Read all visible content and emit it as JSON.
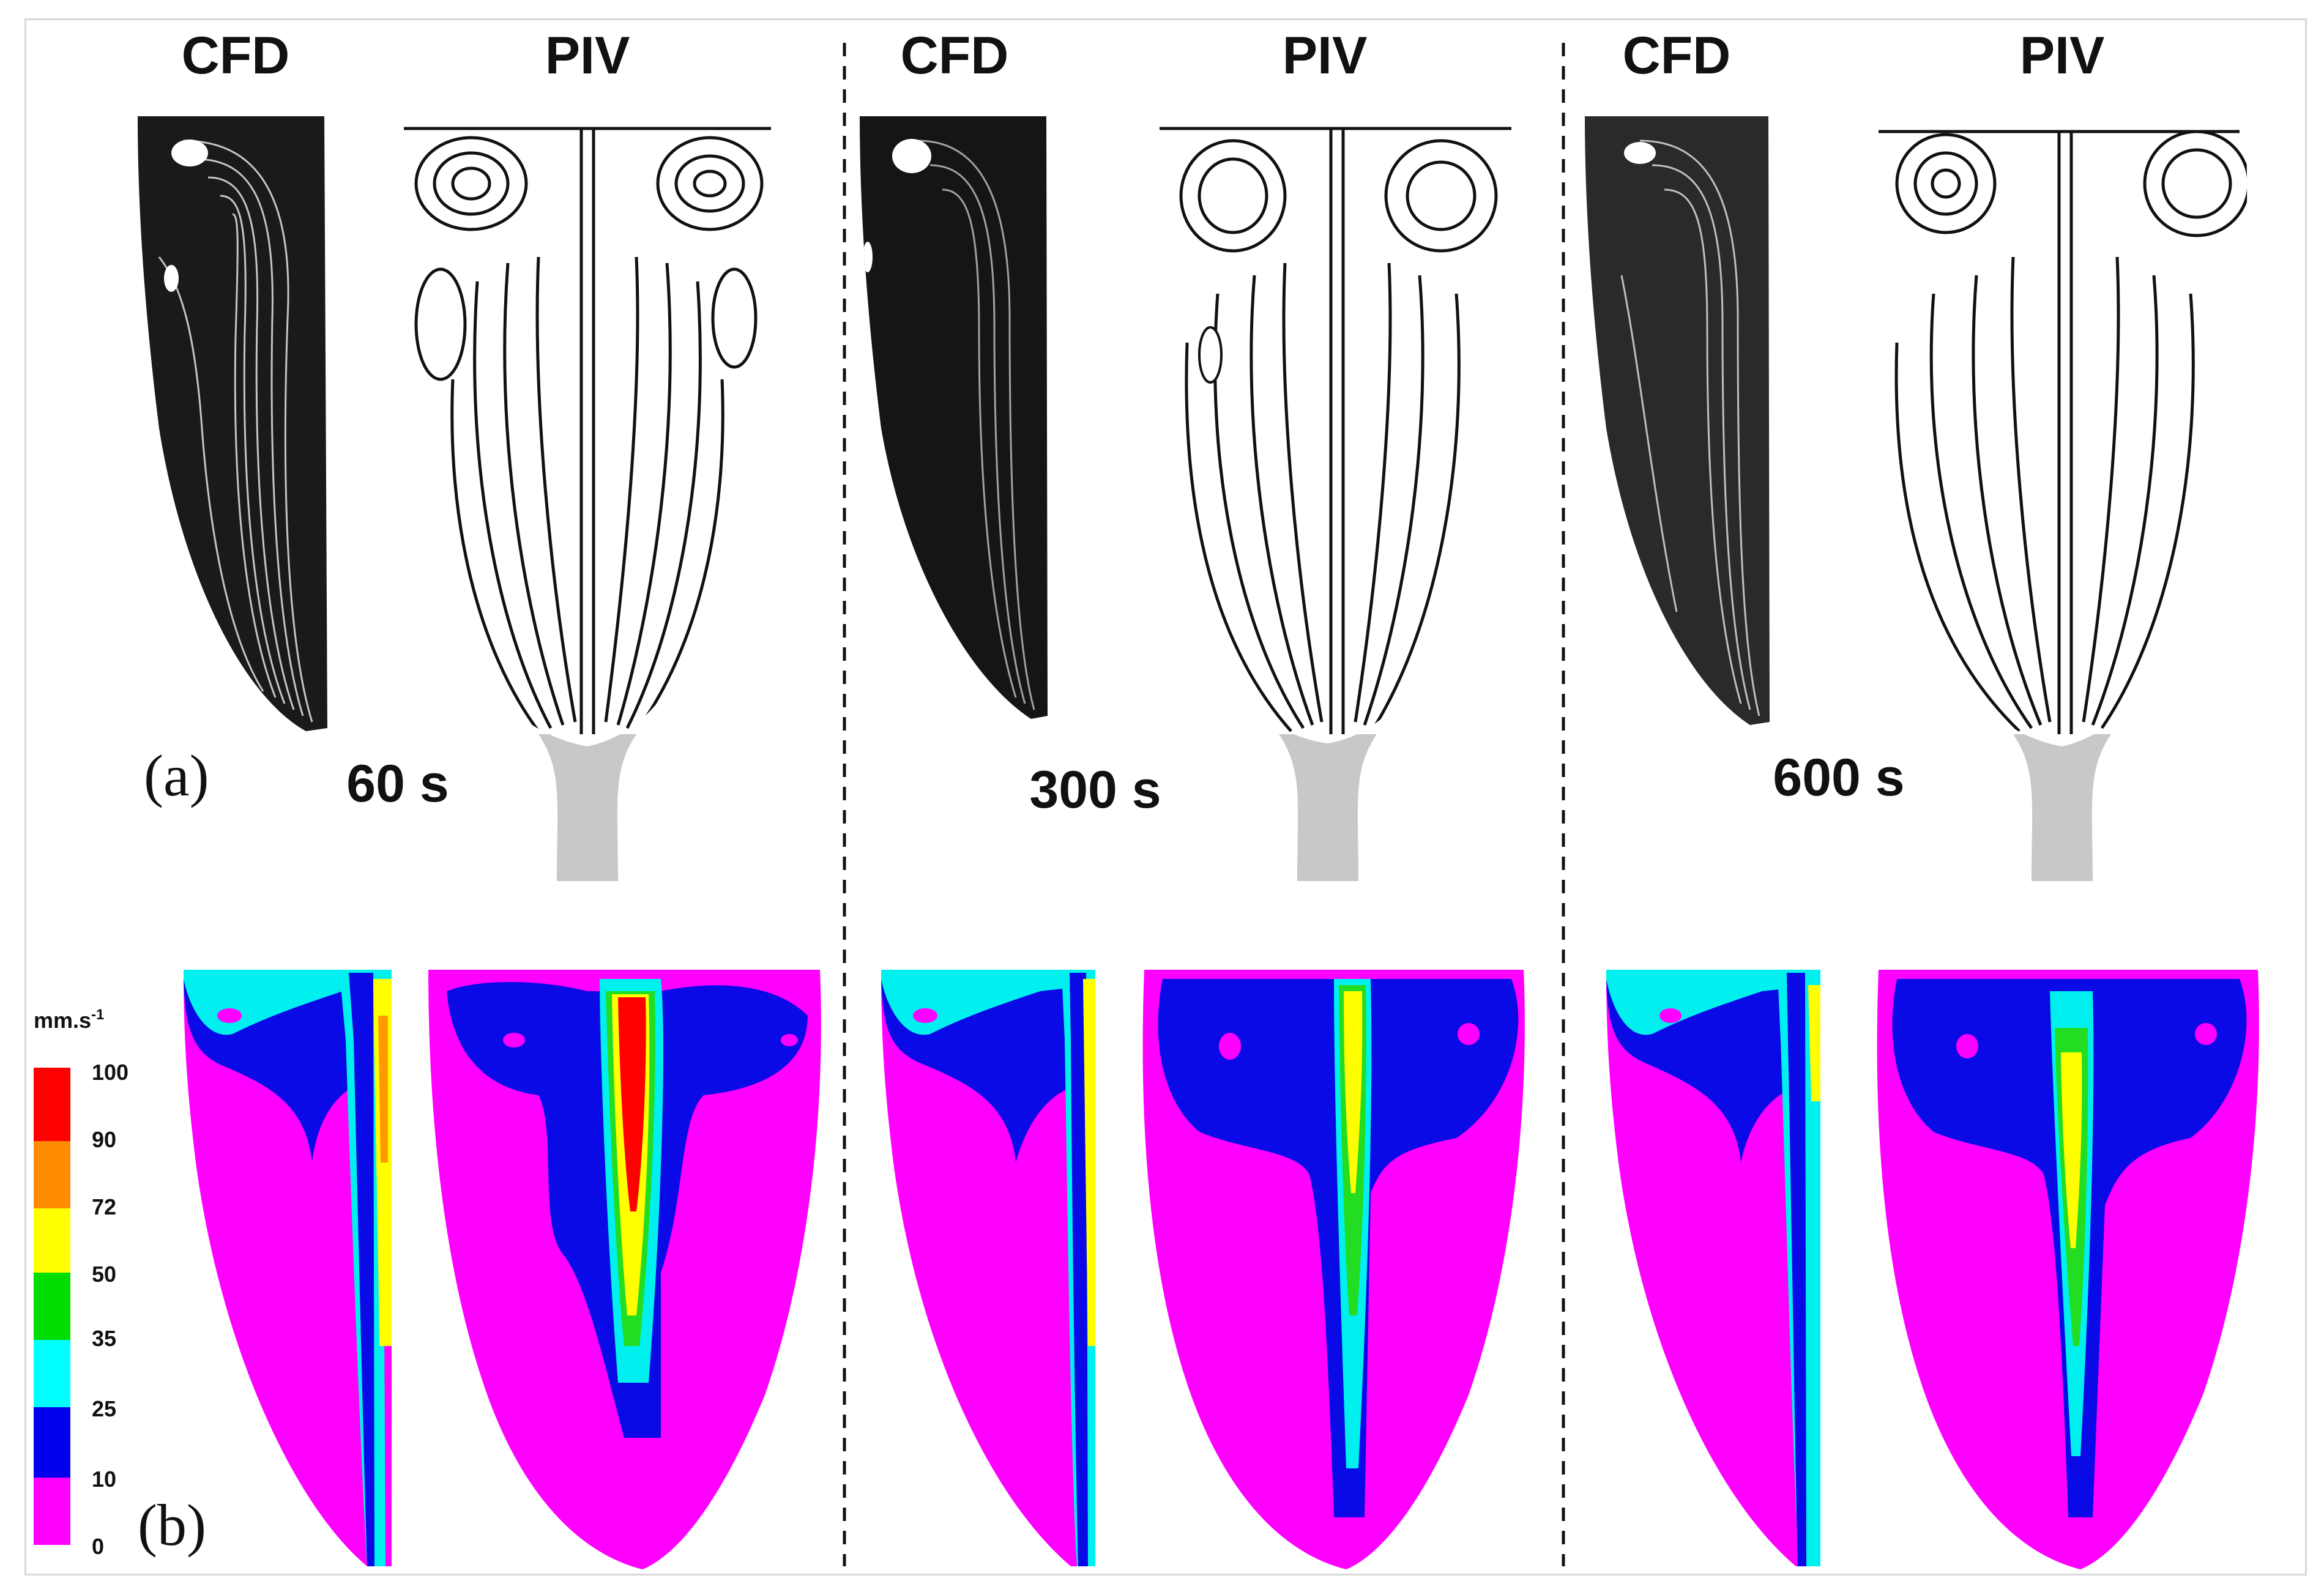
{
  "panel_labels": {
    "a": "(a)",
    "b": "(b)"
  },
  "column_headers": [
    "CFD",
    "PIV",
    "CFD",
    "PIV",
    "CFD",
    "PIV"
  ],
  "times": [
    "60 s",
    "300 s",
    "600 s"
  ],
  "colorbar": {
    "unit": "mm.s",
    "unit_exp": "-1",
    "ticks": [
      "100",
      "90",
      "72",
      "50",
      "35",
      "25",
      "10",
      "0"
    ],
    "colors": [
      "#ff0000",
      "#ff8c00",
      "#ffff00",
      "#00dd00",
      "#00ffff",
      "#0000ee",
      "#ff00ff"
    ]
  },
  "colors": {
    "magenta": "#ff00ff",
    "blue": "#0a0ae6",
    "cyan": "#00f0f0",
    "green": "#22dd22",
    "yellow": "#ffff00",
    "orange": "#ff9900",
    "red": "#ff0000"
  }
}
